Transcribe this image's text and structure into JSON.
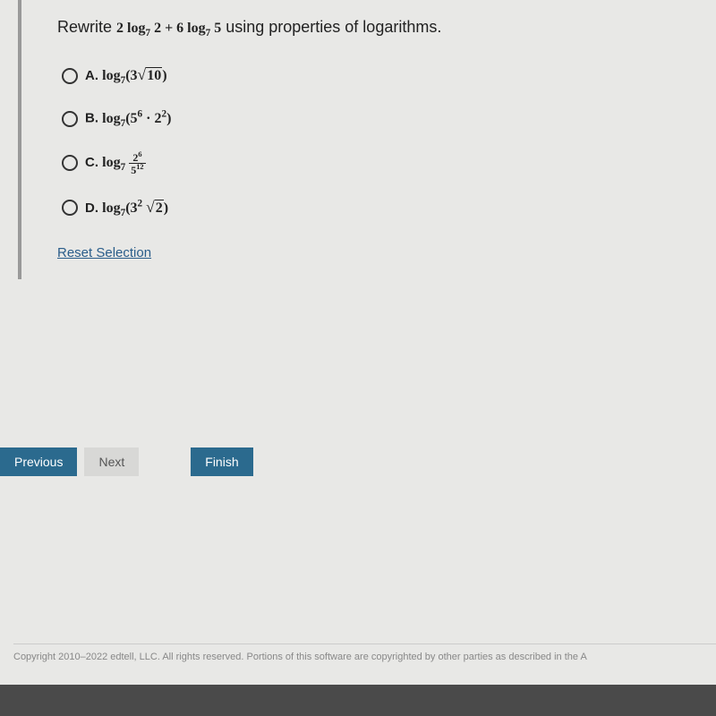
{
  "question": {
    "prompt_prefix": "Rewrite ",
    "prompt_math": "2 log₇ 2 + 6 log₇ 5",
    "prompt_suffix": " using properties of logarithms.",
    "options": {
      "A": {
        "letter": "A.",
        "math": "log₇(3√10)"
      },
      "B": {
        "letter": "B.",
        "math": "log₇(5⁶ · 2²)"
      },
      "C": {
        "letter": "C.",
        "math_prefix": "log₇ ",
        "frac_num": "2⁶",
        "frac_den": "5¹²"
      },
      "D": {
        "letter": "D.",
        "math": "log₇(3² √2)"
      }
    },
    "reset_label": "Reset Selection"
  },
  "nav": {
    "previous": "Previous",
    "next": "Next",
    "finish": "Finish"
  },
  "footer": {
    "copyright": "Copyright 2010–2022 edtell, LLC. All rights reserved. Portions of this software are copyrighted by other parties as described in the A"
  },
  "colors": {
    "primary_button": "#2b6a8e",
    "secondary_button": "#d8d8d6",
    "link": "#2a5d8a",
    "background": "#e8e8e6"
  }
}
